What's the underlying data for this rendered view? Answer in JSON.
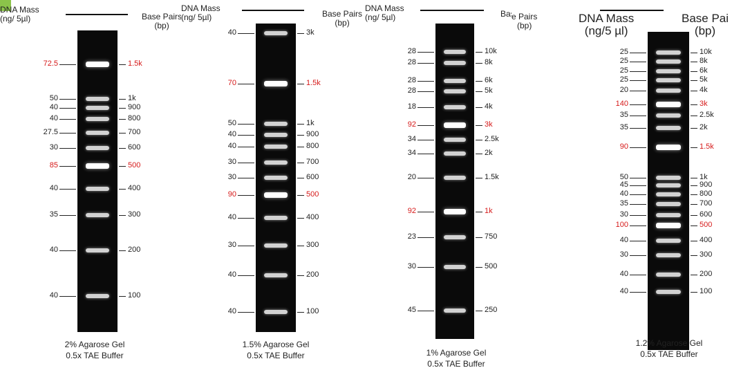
{
  "colors": {
    "highlight": "#d61a1a",
    "gel": "#0a0a0a",
    "corner": "#8bc34a"
  },
  "panels": [
    {
      "left_header": "DNA Mass\n(ng/ 5µl)",
      "right_header": "Base Pairs\n(bp)",
      "caption": "2% Agarose Gel\n0.5x TAE Buffer",
      "bands": [
        {
          "mass": "72.5",
          "bp": "1.5k",
          "highlight": true
        },
        {
          "mass": "50",
          "bp": "1k",
          "highlight": false
        },
        {
          "mass": "40",
          "bp": "900",
          "highlight": false
        },
        {
          "mass": "40",
          "bp": "800",
          "highlight": false
        },
        {
          "mass": "27.5",
          "bp": "700",
          "highlight": false
        },
        {
          "mass": "30",
          "bp": "600",
          "highlight": false
        },
        {
          "mass": "85",
          "bp": "500",
          "highlight": true
        },
        {
          "mass": "40",
          "bp": "400",
          "highlight": false
        },
        {
          "mass": "35",
          "bp": "300",
          "highlight": false
        },
        {
          "mass": "40",
          "bp": "200",
          "highlight": false
        },
        {
          "mass": "40",
          "bp": "100",
          "highlight": false
        }
      ]
    },
    {
      "left_header": "DNA Mass\n(ng/ 5µl)",
      "right_header": "Base Pairs\n(bp)",
      "caption": "1.5% Agarose Gel\n0.5x TAE Buffer",
      "bands": [
        {
          "mass": "40",
          "bp": "3k",
          "highlight": false
        },
        {
          "mass": "70",
          "bp": "1.5k",
          "highlight": true
        },
        {
          "mass": "50",
          "bp": "1k",
          "highlight": false
        },
        {
          "mass": "40",
          "bp": "900",
          "highlight": false
        },
        {
          "mass": "40",
          "bp": "800",
          "highlight": false
        },
        {
          "mass": "30",
          "bp": "700",
          "highlight": false
        },
        {
          "mass": "30",
          "bp": "600",
          "highlight": false
        },
        {
          "mass": "90",
          "bp": "500",
          "highlight": true
        },
        {
          "mass": "40",
          "bp": "400",
          "highlight": false
        },
        {
          "mass": "30",
          "bp": "300",
          "highlight": false
        },
        {
          "mass": "40",
          "bp": "200",
          "highlight": false
        },
        {
          "mass": "40",
          "bp": "100",
          "highlight": false
        }
      ]
    },
    {
      "left_header": "DNA Mass\n(ng/ 5µl)",
      "right_header": "Base Pairs\n(bp)",
      "caption": "1% Agarose Gel\n0.5x TAE Buffer",
      "bands": [
        {
          "mass": "28",
          "bp": "10k",
          "highlight": false
        },
        {
          "mass": "28",
          "bp": "8k",
          "highlight": false
        },
        {
          "mass": "28",
          "bp": "6k",
          "highlight": false
        },
        {
          "mass": "28",
          "bp": "5k",
          "highlight": false
        },
        {
          "mass": "18",
          "bp": "4k",
          "highlight": false
        },
        {
          "mass": "92",
          "bp": "3k",
          "highlight": true
        },
        {
          "mass": "34",
          "bp": "2.5k",
          "highlight": false
        },
        {
          "mass": "34",
          "bp": "2k",
          "highlight": false
        },
        {
          "mass": "20",
          "bp": "1.5k",
          "highlight": false
        },
        {
          "mass": "92",
          "bp": "1k",
          "highlight": true
        },
        {
          "mass": "23",
          "bp": "750",
          "highlight": false
        },
        {
          "mass": "30",
          "bp": "500",
          "highlight": false
        },
        {
          "mass": "45",
          "bp": "250",
          "highlight": false
        }
      ]
    },
    {
      "left_header": "DNA Mass\n(ng/5 µl)",
      "right_header": "Base Pai\n(bp)",
      "clipped_header": "e Pairs\n(bp)",
      "caption": "1.2% Agarose Gel\n0.5x TAE Buffer",
      "bands": [
        {
          "mass": "25",
          "bp": "10k",
          "highlight": false
        },
        {
          "mass": "25",
          "bp": "8k",
          "highlight": false
        },
        {
          "mass": "25",
          "bp": "6k",
          "highlight": false
        },
        {
          "mass": "25",
          "bp": "5k",
          "highlight": false
        },
        {
          "mass": "20",
          "bp": "4k",
          "highlight": false
        },
        {
          "mass": "140",
          "bp": "3k",
          "highlight": true
        },
        {
          "mass": "35",
          "bp": "2.5k",
          "highlight": false
        },
        {
          "mass": "35",
          "bp": "2k",
          "highlight": false
        },
        {
          "mass": "90",
          "bp": "1.5k",
          "highlight": true
        },
        {
          "mass": "50",
          "bp": "1k",
          "highlight": false
        },
        {
          "mass": "45",
          "bp": "900",
          "highlight": false
        },
        {
          "mass": "40",
          "bp": "800",
          "highlight": false
        },
        {
          "mass": "35",
          "bp": "700",
          "highlight": false
        },
        {
          "mass": "30",
          "bp": "600",
          "highlight": false
        },
        {
          "mass": "100",
          "bp": "500",
          "highlight": true
        },
        {
          "mass": "40",
          "bp": "400",
          "highlight": false
        },
        {
          "mass": "30",
          "bp": "300",
          "highlight": false
        },
        {
          "mass": "40",
          "bp": "200",
          "highlight": false
        },
        {
          "mass": "40",
          "bp": "100",
          "highlight": false
        }
      ]
    }
  ]
}
